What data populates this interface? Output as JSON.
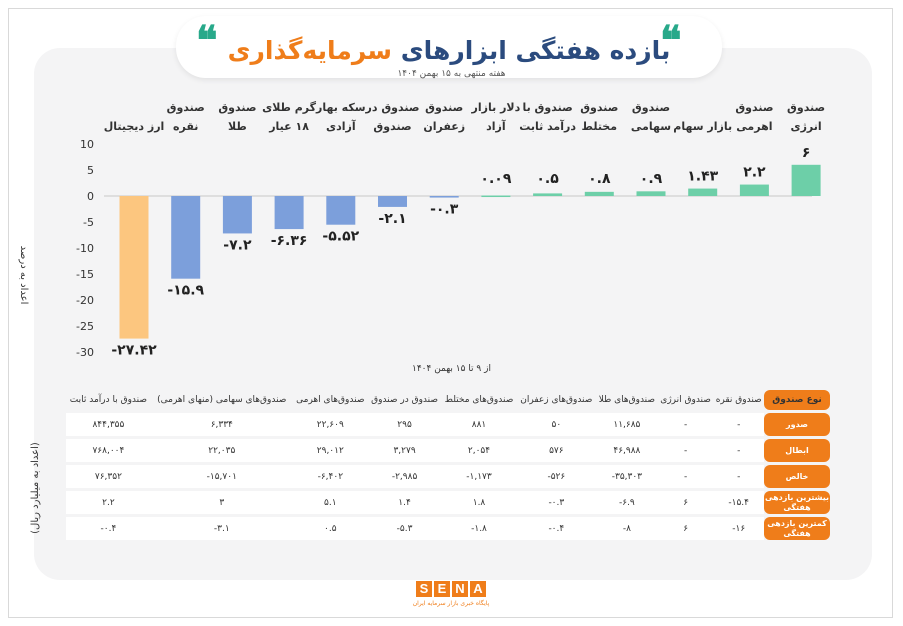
{
  "header": {
    "title_blue": "بازده هفتگی ابزارهای",
    "title_orange": "سرمایه‌گذاری",
    "subtitle": "هفته منتهی به ۱۵ بهمن ۱۴۰۴",
    "quote_glyph": "❝"
  },
  "chart_data": {
    "type": "bar",
    "ylabel": "اعداد به درصد",
    "xnote": "از ۹ تا ۱۵ بهمن ۱۴۰۴",
    "ylim": [
      -30,
      10
    ],
    "yticks": [
      10,
      5,
      0,
      -5,
      -10,
      -15,
      -20,
      -25,
      -30
    ],
    "ytick_labels": [
      "10",
      "5",
      "0",
      "-5",
      "-10",
      "-15",
      "-20",
      "-25",
      "-30"
    ],
    "categories": [
      [
        "ارز دیجیتال"
      ],
      [
        "صندوق",
        "نقره"
      ],
      [
        "صندوق",
        "طلا"
      ],
      [
        "گرم طلای",
        "۱۸ عیار"
      ],
      [
        "سکه بهار",
        "آزادی"
      ],
      [
        "صندوق در",
        "صندوق"
      ],
      [
        "صندوق",
        "زعفران"
      ],
      [
        "دلار بازار",
        "آزاد"
      ],
      [
        "صندوق با",
        "درآمد ثابت"
      ],
      [
        "صندوق",
        "مختلط"
      ],
      [
        "صندوق",
        "سهامی"
      ],
      [
        "بازار سهام"
      ],
      [
        "صندوق",
        "اهرمی"
      ],
      [
        "صندوق",
        "انرژی"
      ]
    ],
    "values": [
      -27.42,
      -15.9,
      -7.2,
      -6.36,
      -5.52,
      -2.1,
      -0.3,
      0.09,
      0.5,
      0.8,
      0.9,
      1.43,
      2.2,
      6
    ],
    "value_labels": [
      "-۲۷.۴۲",
      "-۱۵.۹",
      "-۷.۲",
      "-۶.۳۶",
      "-۵.۵۲",
      "-۲.۱",
      "-۰.۳",
      "۰.۰۹",
      "۰.۵",
      "۰.۸",
      "۰.۹",
      "۱.۴۳",
      "۲.۲",
      "۶"
    ],
    "colors": {
      "crypto": "#fcc67f",
      "negative": "#7c9fdb",
      "positive": "#6dcfa8"
    }
  },
  "table": {
    "side_label": "(اعداد به میلیارد ریال)",
    "columns": [
      "صندوق با درآمد ثابت",
      "صندوق‌های سهامی (منهای اهرمی)",
      "صندوق‌های اهرمی",
      "صندوق در صندوق",
      "صندوق‌های مختلط",
      "صندوق‌های زعفران",
      "صندوق‌های طلا",
      "صندوق انرژی",
      "صندوق نقره"
    ],
    "corner": "نوع صندوق",
    "rows": [
      {
        "label": "صدور",
        "cells": [
          "۸۴۴,۳۵۵",
          "۶,۳۳۴",
          "۲۲,۶۰۹",
          "۲۹۵",
          "۸۸۱",
          "۵۰",
          "۱۱,۶۸۵",
          "-",
          "-"
        ]
      },
      {
        "label": "ابطال",
        "cells": [
          "۷۶۸,۰۰۴",
          "۲۲,۰۳۵",
          "۲۹,۰۱۲",
          "۳,۲۷۹",
          "۲,۰۵۴",
          "۵۷۶",
          "۴۶,۹۸۸",
          "-",
          "-"
        ]
      },
      {
        "label": "خالص",
        "cells": [
          "۷۶,۳۵۲",
          "-۱۵,۷۰۱",
          "-۶,۴۰۲",
          "-۲,۹۸۵",
          "-۱,۱۷۳",
          "-۵۲۶",
          "-۳۵,۳۰۳",
          "-",
          "-"
        ]
      },
      {
        "label": "بیشترین بازدهی هفتگی",
        "cells": [
          "۲.۲",
          "۳",
          "۵.۱",
          "۱.۴",
          "۱.۸",
          "-۰.۳",
          "-۶.۹",
          "۶",
          "-۱۵.۴"
        ]
      },
      {
        "label": "کمترین بازدهی هفتگی",
        "cells": [
          "-۰.۴",
          "-۳.۱",
          "۰.۵",
          "-۵.۳",
          "-۱.۸",
          "-۰.۴",
          "-۸",
          "۶",
          "-۱۶"
        ]
      }
    ]
  },
  "footer": {
    "logo_letters": [
      "S",
      "E",
      "N",
      "A"
    ],
    "logo_caption": "پایگاه خبری بازار سرمایه ایران"
  }
}
